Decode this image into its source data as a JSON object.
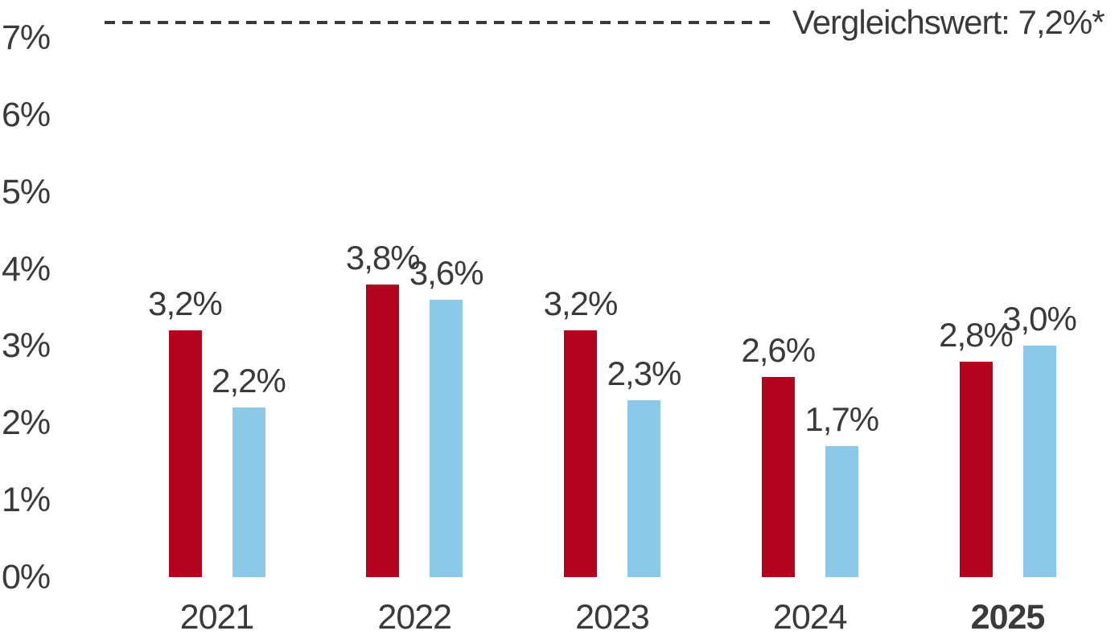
{
  "colors": {
    "background": "#ffffff",
    "text": "#3a3a3a",
    "reference_line": "#3a3a3a",
    "series_red": "#b30220",
    "series_blue": "#8cc9e8"
  },
  "chart_data": {
    "type": "bar",
    "title": "",
    "categories": [
      "2021",
      "2022",
      "2023",
      "2024",
      "2025"
    ],
    "emphasized_category": "2025",
    "series": [
      {
        "name": "red",
        "color": "#b30220",
        "values": [
          3.2,
          3.8,
          3.2,
          2.6,
          2.8
        ],
        "value_labels": [
          "3,2%",
          "3,8%",
          "3,2%",
          "2,6%",
          "2,8%"
        ]
      },
      {
        "name": "blue",
        "color": "#8cc9e8",
        "values": [
          2.2,
          3.6,
          2.3,
          1.7,
          3.0
        ],
        "value_labels": [
          "2,2%",
          "3,6%",
          "2,3%",
          "1,7%",
          "3,0%"
        ]
      }
    ],
    "y_axis": {
      "ticks": [
        {
          "label": "0%",
          "value": 0
        },
        {
          "label": "1%",
          "value": 1
        },
        {
          "label": "2%",
          "value": 2
        },
        {
          "label": "3%",
          "value": 3
        },
        {
          "label": "4%",
          "value": 4
        },
        {
          "label": "5%",
          "value": 5
        },
        {
          "label": "6%",
          "value": 6
        },
        {
          "label": "7%",
          "value": 7
        }
      ],
      "range": [
        0,
        7.4
      ]
    },
    "reference_line": {
      "label": "Vergleichswert: 7,2%*",
      "value": 7.2,
      "style": "dashed"
    },
    "grid": false,
    "legend": "none"
  }
}
